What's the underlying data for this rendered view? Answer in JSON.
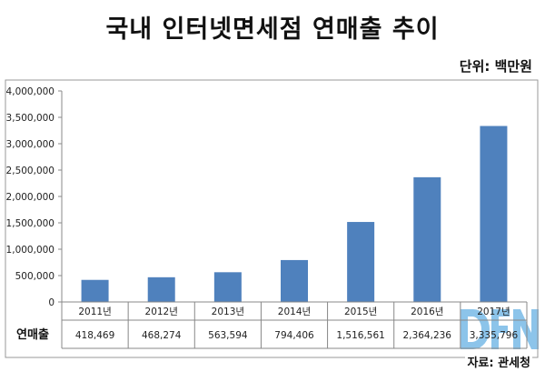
{
  "chart_data": {
    "type": "bar",
    "title": "국내 인터넷면세점 연매출 추이",
    "unit": "단위: 백만원",
    "source": "자료: 관세청",
    "categories": [
      "2011년",
      "2012년",
      "2013년",
      "2014년",
      "2015년",
      "2016년",
      "2017년"
    ],
    "row_label": "연매출",
    "values": [
      418469,
      468274,
      563594,
      794406,
      1516561,
      2364236,
      3335796
    ],
    "value_labels": [
      "418,469",
      "468,274",
      "563,594",
      "794,406",
      "1,516,561",
      "2,364,236",
      "3,335,796"
    ],
    "ylim": [
      0,
      4000000
    ],
    "yticks": [
      0,
      500000,
      1000000,
      1500000,
      2000000,
      2500000,
      3000000,
      3500000,
      4000000
    ],
    "ytick_labels": [
      "0",
      "500,000",
      "1,000,000",
      "1,500,000",
      "2,000,000",
      "2,500,000",
      "3,000,000",
      "3,500,000",
      "4,000,000"
    ],
    "grid": false,
    "bar_color": "#4f81bd"
  },
  "watermark": "DFN"
}
